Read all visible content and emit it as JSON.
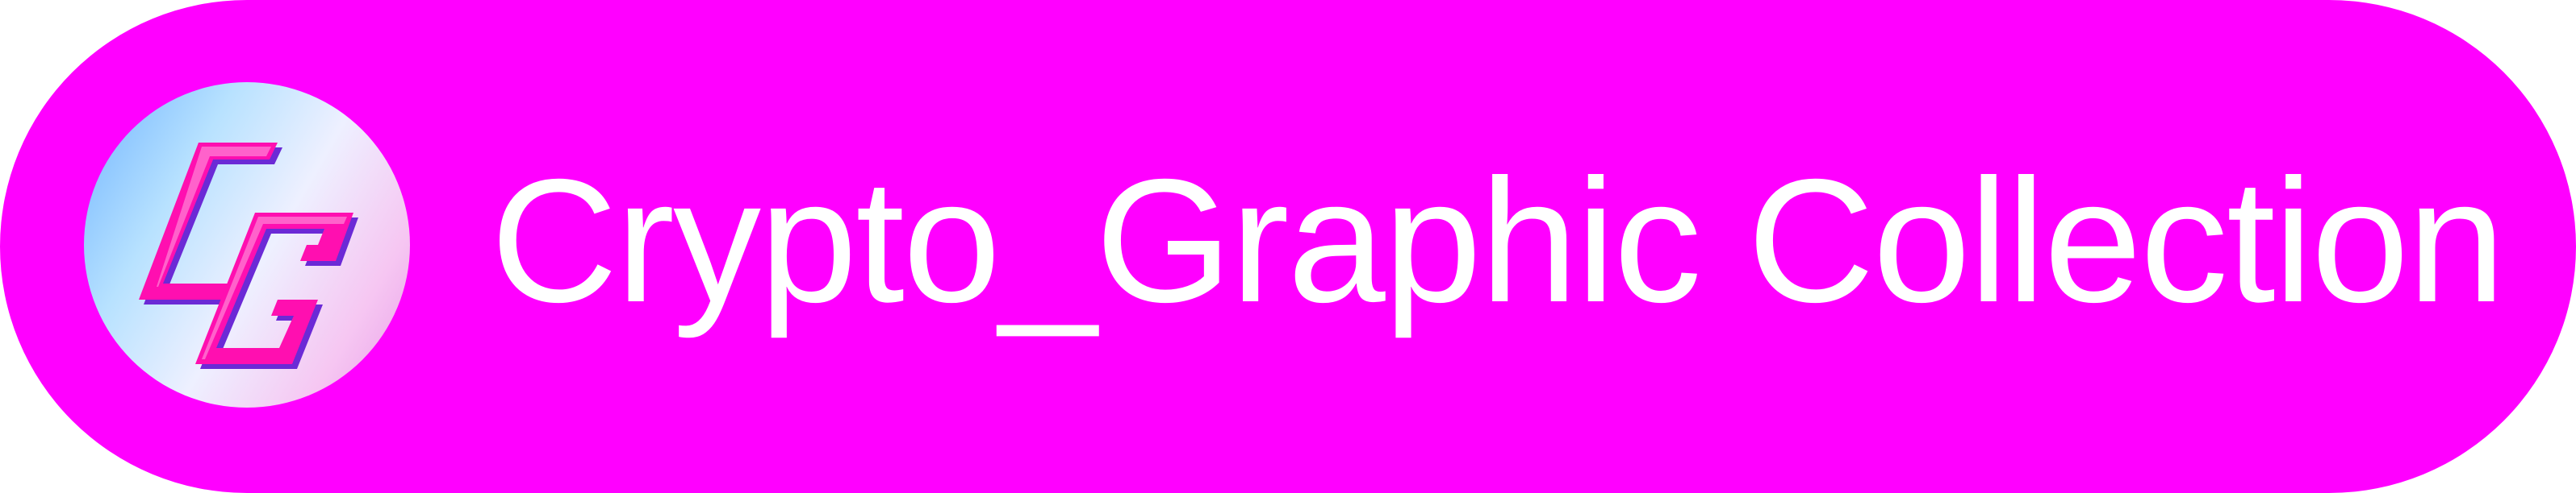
{
  "button": {
    "label": "Crypto_Graphic Collection",
    "background_color": "#ff00ff",
    "text_color": "#ffffff"
  },
  "logo": {
    "icon": "cg-logo-icon",
    "text": "CG",
    "colors": {
      "letter": "#ff0fb0",
      "letter_shadow": "#6b2ad6",
      "gradient_start": "#6fb3ff",
      "gradient_end": "#e79be6"
    }
  }
}
